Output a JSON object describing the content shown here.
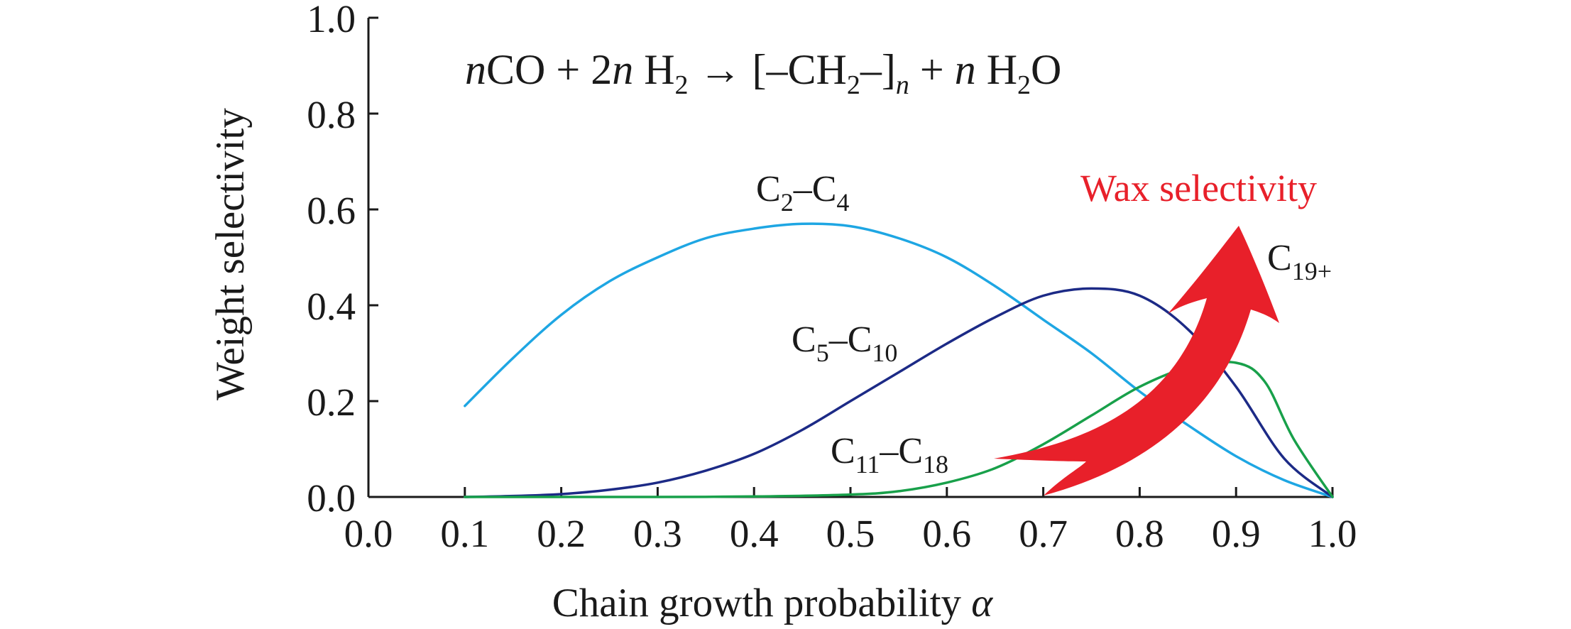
{
  "chart_data": {
    "type": "line",
    "equation": {
      "parts": [
        {
          "text": "n",
          "style": "italic"
        },
        {
          "text": "CO + 2",
          "style": "normal"
        },
        {
          "text": "n",
          "style": "italic"
        },
        {
          "text": " H",
          "style": "normal"
        },
        {
          "text": "2",
          "style": "sub"
        },
        {
          "text": " → [–CH",
          "style": "normal"
        },
        {
          "text": "2",
          "style": "sub"
        },
        {
          "text": "–]",
          "style": "normal"
        },
        {
          "text": "n",
          "style": "italic-sub"
        },
        {
          "text": " + ",
          "style": "normal"
        },
        {
          "text": "n",
          "style": "italic"
        },
        {
          "text": " H",
          "style": "normal"
        },
        {
          "text": "2",
          "style": "sub"
        },
        {
          "text": "O",
          "style": "normal"
        }
      ]
    },
    "xlabel": "Chain growth probability",
    "xlabel_symbol": "α",
    "ylabel": "Weight selectivity",
    "xlim": [
      0.0,
      1.0
    ],
    "ylim": [
      0.0,
      1.0
    ],
    "xticks": [
      "0.0",
      "0.1",
      "0.2",
      "0.3",
      "0.4",
      "0.5",
      "0.6",
      "0.7",
      "0.8",
      "0.9",
      "1.0"
    ],
    "yticks": [
      "0.0",
      "0.2",
      "0.4",
      "0.6",
      "0.8",
      "1.0"
    ],
    "grid": false,
    "series": [
      {
        "name": "C2–C4",
        "label_parts": [
          [
            "C",
            "n"
          ],
          [
            "2",
            "s"
          ],
          [
            "–C",
            "n"
          ],
          [
            "4",
            "s"
          ]
        ],
        "color": "#1ea6e3",
        "x": [
          0.1,
          0.15,
          0.2,
          0.25,
          0.3,
          0.35,
          0.4,
          0.45,
          0.5,
          0.55,
          0.6,
          0.65,
          0.7,
          0.75,
          0.8,
          0.85,
          0.9,
          0.95,
          1.0
        ],
        "values": [
          0.19,
          0.29,
          0.38,
          0.45,
          0.5,
          0.54,
          0.56,
          0.57,
          0.565,
          0.54,
          0.5,
          0.44,
          0.37,
          0.3,
          0.22,
          0.15,
          0.085,
          0.035,
          0.0
        ]
      },
      {
        "name": "C5–C10",
        "label_parts": [
          [
            "C",
            "n"
          ],
          [
            "5",
            "s"
          ],
          [
            "–C",
            "n"
          ],
          [
            "10",
            "s"
          ]
        ],
        "color": "#1c2a86",
        "x": [
          0.1,
          0.15,
          0.2,
          0.25,
          0.3,
          0.35,
          0.4,
          0.45,
          0.5,
          0.55,
          0.6,
          0.65,
          0.7,
          0.75,
          0.8,
          0.85,
          0.9,
          0.95,
          1.0
        ],
        "values": [
          0.0,
          0.002,
          0.006,
          0.015,
          0.03,
          0.055,
          0.09,
          0.14,
          0.2,
          0.26,
          0.32,
          0.375,
          0.42,
          0.435,
          0.42,
          0.35,
          0.23,
          0.08,
          0.0
        ]
      },
      {
        "name": "C11–C18",
        "label_parts": [
          [
            "C",
            "n"
          ],
          [
            "11",
            "s"
          ],
          [
            "–C",
            "n"
          ],
          [
            "18",
            "s"
          ]
        ],
        "color": "#18a04a",
        "x": [
          0.1,
          0.2,
          0.3,
          0.4,
          0.5,
          0.55,
          0.6,
          0.65,
          0.7,
          0.75,
          0.8,
          0.85,
          0.9,
          0.93,
          0.96,
          1.0
        ],
        "values": [
          0.0,
          0.0,
          0.0,
          0.001,
          0.005,
          0.012,
          0.03,
          0.06,
          0.11,
          0.17,
          0.23,
          0.27,
          0.28,
          0.24,
          0.12,
          0.0
        ]
      }
    ],
    "annotations": [
      {
        "id": "c19",
        "label_parts": [
          [
            "C",
            "n"
          ],
          [
            "19+",
            "s"
          ]
        ]
      },
      {
        "id": "wax",
        "text": "Wax selectivity",
        "color": "#e8202a"
      }
    ]
  }
}
